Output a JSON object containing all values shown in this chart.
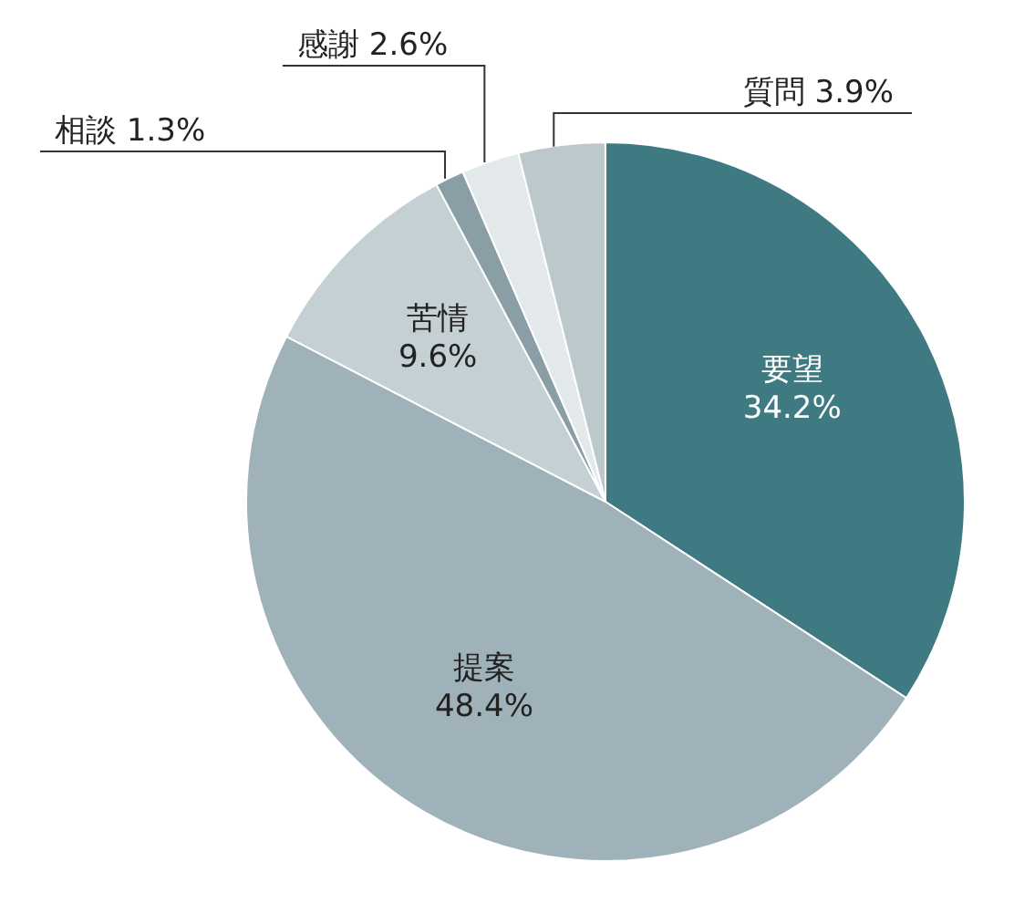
{
  "chart_data": {
    "type": "pie",
    "categories": [
      "要望",
      "提案",
      "苦情",
      "相談",
      "感謝",
      "質問"
    ],
    "values": [
      34.2,
      48.4,
      9.6,
      1.3,
      2.6,
      3.9
    ],
    "value_labels": [
      "34.2%",
      "48.4%",
      "9.6%",
      "1.3%",
      "2.6%",
      "3.9%"
    ],
    "colors": [
      "#3f7a83",
      "#9fb2b9",
      "#c5d0d4",
      "#8a9ea5",
      "#e3e8ea",
      "#bcc8cc"
    ],
    "legend": false
  }
}
